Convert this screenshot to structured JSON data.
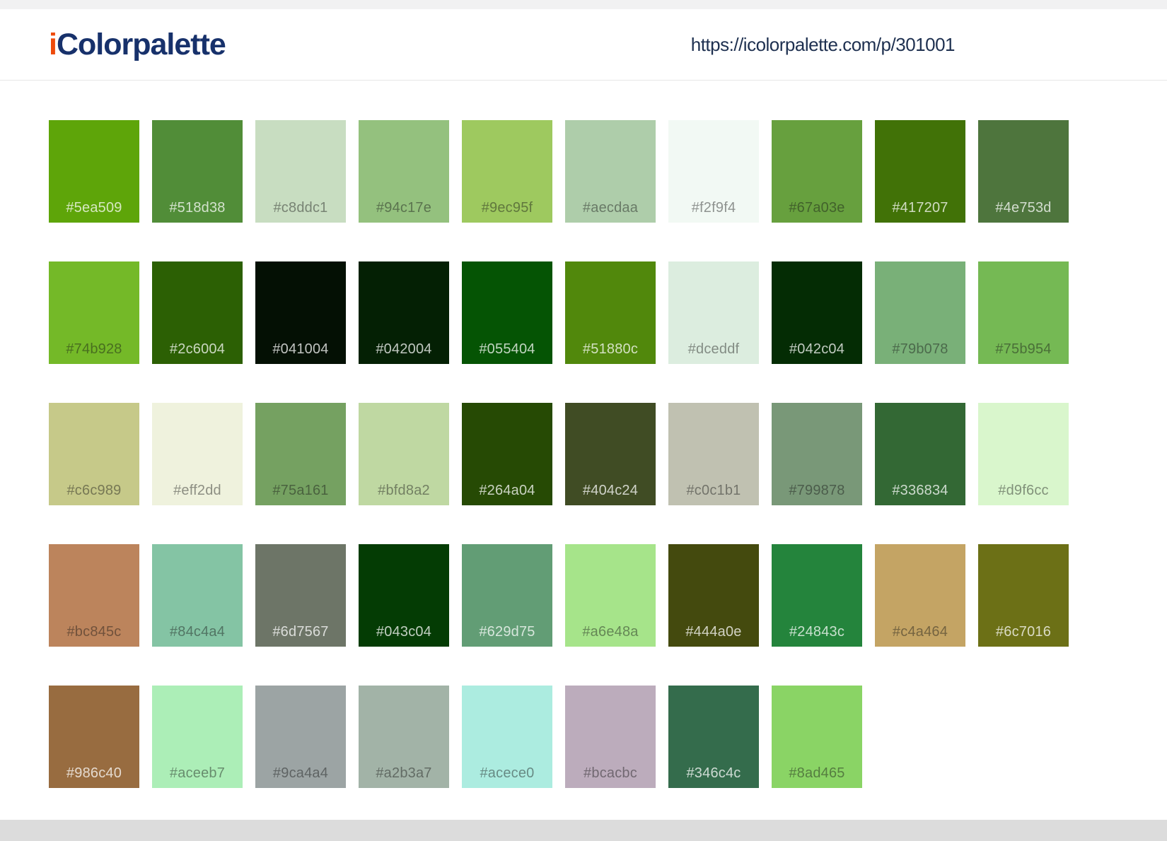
{
  "header": {
    "brand_prefix": "i",
    "brand_name": "Colorpalette",
    "brand_prefix_color": "#ee4b0c",
    "brand_name_color": "#17316b",
    "url": "https://icolorpalette.com/p/301001"
  },
  "palette": {
    "columns": 10,
    "swatches": [
      {
        "hex": "#5ea509",
        "label_tone": "light"
      },
      {
        "hex": "#518d38",
        "label_tone": "light"
      },
      {
        "hex": "#c8ddc1",
        "label_tone": "dark"
      },
      {
        "hex": "#94c17e",
        "label_tone": "dark"
      },
      {
        "hex": "#9ec95f",
        "label_tone": "dark"
      },
      {
        "hex": "#aecdaa",
        "label_tone": "dark"
      },
      {
        "hex": "#f2f9f4",
        "label_tone": "dark"
      },
      {
        "hex": "#67a03e",
        "label_tone": "dark"
      },
      {
        "hex": "#417207",
        "label_tone": "light"
      },
      {
        "hex": "#4e753d",
        "label_tone": "light"
      },
      {
        "hex": "#74b928",
        "label_tone": "dark"
      },
      {
        "hex": "#2c6004",
        "label_tone": "light"
      },
      {
        "hex": "#041004",
        "label_tone": "light"
      },
      {
        "hex": "#042004",
        "label_tone": "light"
      },
      {
        "hex": "#055404",
        "label_tone": "light"
      },
      {
        "hex": "#51880c",
        "label_tone": "light"
      },
      {
        "hex": "#dceddf",
        "label_tone": "dark"
      },
      {
        "hex": "#042c04",
        "label_tone": "light"
      },
      {
        "hex": "#79b078",
        "label_tone": "dark"
      },
      {
        "hex": "#75b954",
        "label_tone": "dark"
      },
      {
        "hex": "#c6c989",
        "label_tone": "dark"
      },
      {
        "hex": "#eff2dd",
        "label_tone": "dark"
      },
      {
        "hex": "#75a161",
        "label_tone": "dark"
      },
      {
        "hex": "#bfd8a2",
        "label_tone": "dark"
      },
      {
        "hex": "#264a04",
        "label_tone": "light"
      },
      {
        "hex": "#404c24",
        "label_tone": "light"
      },
      {
        "hex": "#c0c1b1",
        "label_tone": "dark"
      },
      {
        "hex": "#799878",
        "label_tone": "dark"
      },
      {
        "hex": "#336834",
        "label_tone": "light"
      },
      {
        "hex": "#d9f6cc",
        "label_tone": "dark"
      },
      {
        "hex": "#bc845c",
        "label_tone": "dark"
      },
      {
        "hex": "#84c4a4",
        "label_tone": "dark"
      },
      {
        "hex": "#6d7567",
        "label_tone": "light"
      },
      {
        "hex": "#043c04",
        "label_tone": "light"
      },
      {
        "hex": "#629d75",
        "label_tone": "light"
      },
      {
        "hex": "#a6e48a",
        "label_tone": "dark"
      },
      {
        "hex": "#444a0e",
        "label_tone": "light"
      },
      {
        "hex": "#24843c",
        "label_tone": "light"
      },
      {
        "hex": "#c4a464",
        "label_tone": "dark"
      },
      {
        "hex": "#6c7016",
        "label_tone": "light"
      },
      {
        "hex": "#986c40",
        "label_tone": "light"
      },
      {
        "hex": "#aceeb7",
        "label_tone": "dark"
      },
      {
        "hex": "#9ca4a4",
        "label_tone": "dark"
      },
      {
        "hex": "#a2b3a7",
        "label_tone": "dark"
      },
      {
        "hex": "#acece0",
        "label_tone": "dark"
      },
      {
        "hex": "#bcacbc",
        "label_tone": "dark"
      },
      {
        "hex": "#346c4c",
        "label_tone": "light"
      },
      {
        "hex": "#8ad465",
        "label_tone": "dark"
      }
    ]
  }
}
